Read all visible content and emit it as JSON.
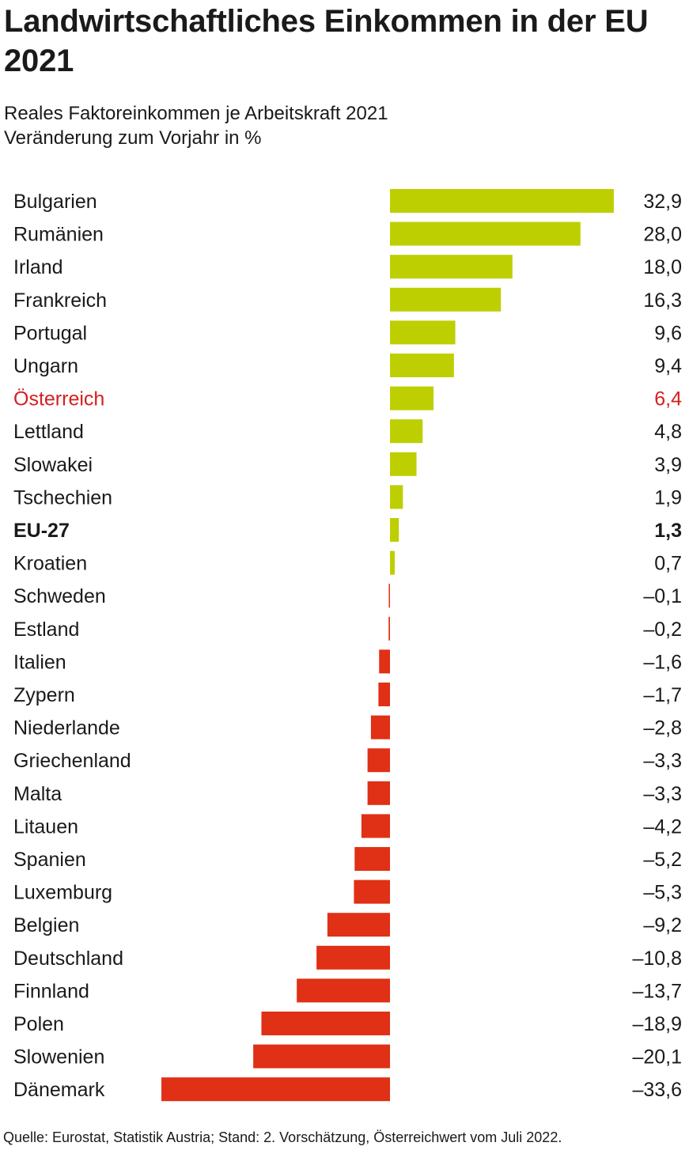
{
  "title": "Landwirtschaftliches Einkommen in der EU 2021",
  "subtitle_line1": "Reales Faktoreinkommen je Arbeitskraft 2021",
  "subtitle_line2": "Veränderung zum Vorjahr in %",
  "source": "Quelle: Eurostat, Statistik Austria; Stand: 2. Vorschätzung, Österreichwert vom Juli 2022.",
  "colors": {
    "positive": "#bdcf00",
    "negative": "#e03015",
    "highlight_text": "#d41f1f",
    "text": "#1a1a1a"
  },
  "chart_data": {
    "type": "bar",
    "orientation": "horizontal",
    "title": "Landwirtschaftliches Einkommen in der EU 2021",
    "subtitle": "Reales Faktoreinkommen je Arbeitskraft 2021 – Veränderung zum Vorjahr in %",
    "xlabel": "",
    "ylabel": "",
    "grid": false,
    "legend": "none",
    "categories": [
      "Bulgarien",
      "Rumänien",
      "Irland",
      "Frankreich",
      "Portugal",
      "Ungarn",
      "Österreich",
      "Lettland",
      "Slowakei",
      "Tschechien",
      "EU-27",
      "Kroatien",
      "Schweden",
      "Estland",
      "Italien",
      "Zypern",
      "Niederlande",
      "Griechenland",
      "Malta",
      "Litauen",
      "Spanien",
      "Luxemburg",
      "Belgien",
      "Deutschland",
      "Finnland",
      "Polen",
      "Slowenien",
      "Dänemark"
    ],
    "values": [
      32.9,
      28.0,
      18.0,
      16.3,
      9.6,
      9.4,
      6.4,
      4.8,
      3.9,
      1.9,
      1.3,
      0.7,
      -0.1,
      -0.2,
      -1.6,
      -1.7,
      -2.8,
      -3.3,
      -3.3,
      -4.2,
      -5.2,
      -5.3,
      -9.2,
      -10.8,
      -13.7,
      -18.9,
      -20.1,
      -33.6
    ],
    "value_labels": [
      "32,9",
      "28,0",
      "18,0",
      "16,3",
      "9,6",
      "9,4",
      "6,4",
      "4,8",
      "3,9",
      "1,9",
      "1,3",
      "0,7",
      "–0,1",
      "–0,2",
      "–1,6",
      "–1,7",
      "–2,8",
      "–3,3",
      "–3,3",
      "–4,2",
      "–5,2",
      "–5,3",
      "–9,2",
      "–10,8",
      "–13,7",
      "–18,9",
      "–20,1",
      "–33,6"
    ],
    "highlight": "Österreich",
    "bold": "EU-27",
    "xlim": [
      -33.6,
      32.9
    ]
  }
}
